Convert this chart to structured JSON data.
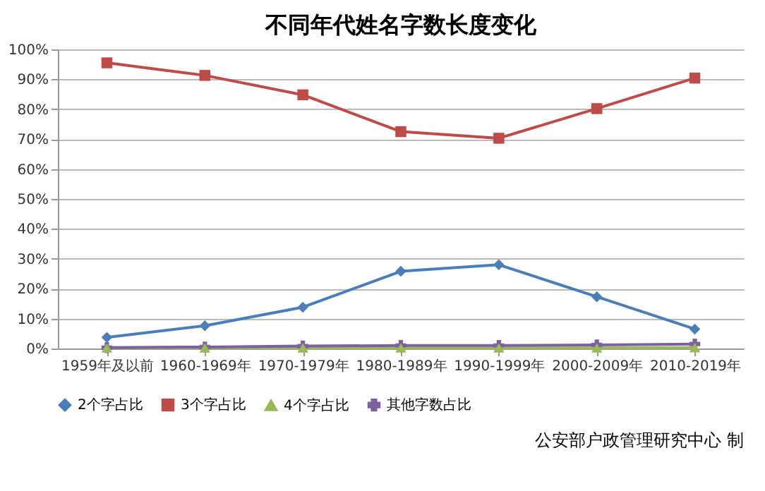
{
  "chart_data": {
    "type": "line",
    "title": "不同年代姓名字数长度变化",
    "categories": [
      "1959年及以前",
      "1960-1969年",
      "1970-1979年",
      "1980-1989年",
      "1990-1999年",
      "2000-2009年",
      "2010-2019年"
    ],
    "series": [
      {
        "name": "2个字占比",
        "color": "#4a7ebb",
        "marker": "diamond",
        "values": [
          3.7,
          7.6,
          13.8,
          25.8,
          28.0,
          17.3,
          6.5
        ]
      },
      {
        "name": "3个字占比",
        "color": "#be4b48",
        "marker": "square",
        "values": [
          95.5,
          91.3,
          84.8,
          72.5,
          70.3,
          80.2,
          90.4
        ]
      },
      {
        "name": "4个字占比",
        "color": "#98b954",
        "marker": "triangle",
        "values": [
          0.2,
          0.2,
          0.2,
          0.2,
          0.2,
          0.2,
          0.3
        ]
      },
      {
        "name": "其他字数占比",
        "color": "#7d60a0",
        "marker": "cross",
        "values": [
          0.3,
          0.5,
          0.8,
          1.0,
          1.0,
          1.2,
          1.5
        ]
      }
    ],
    "ylim": [
      0,
      100
    ],
    "yticks": [
      {
        "value": 0,
        "label": "0%"
      },
      {
        "value": 10,
        "label": "10%"
      },
      {
        "value": 20,
        "label": "20%"
      },
      {
        "value": 30,
        "label": "30%"
      },
      {
        "value": 40,
        "label": "40%"
      },
      {
        "value": 50,
        "label": "50%"
      },
      {
        "value": 60,
        "label": "60%"
      },
      {
        "value": 70,
        "label": "70%"
      },
      {
        "value": 80,
        "label": "80%"
      },
      {
        "value": 90,
        "label": "90%"
      },
      {
        "value": 100,
        "label": "100%"
      }
    ],
    "grid": "y",
    "legend": "bottom",
    "annotations": [
      "公安部户政管理研究中心 制"
    ]
  }
}
